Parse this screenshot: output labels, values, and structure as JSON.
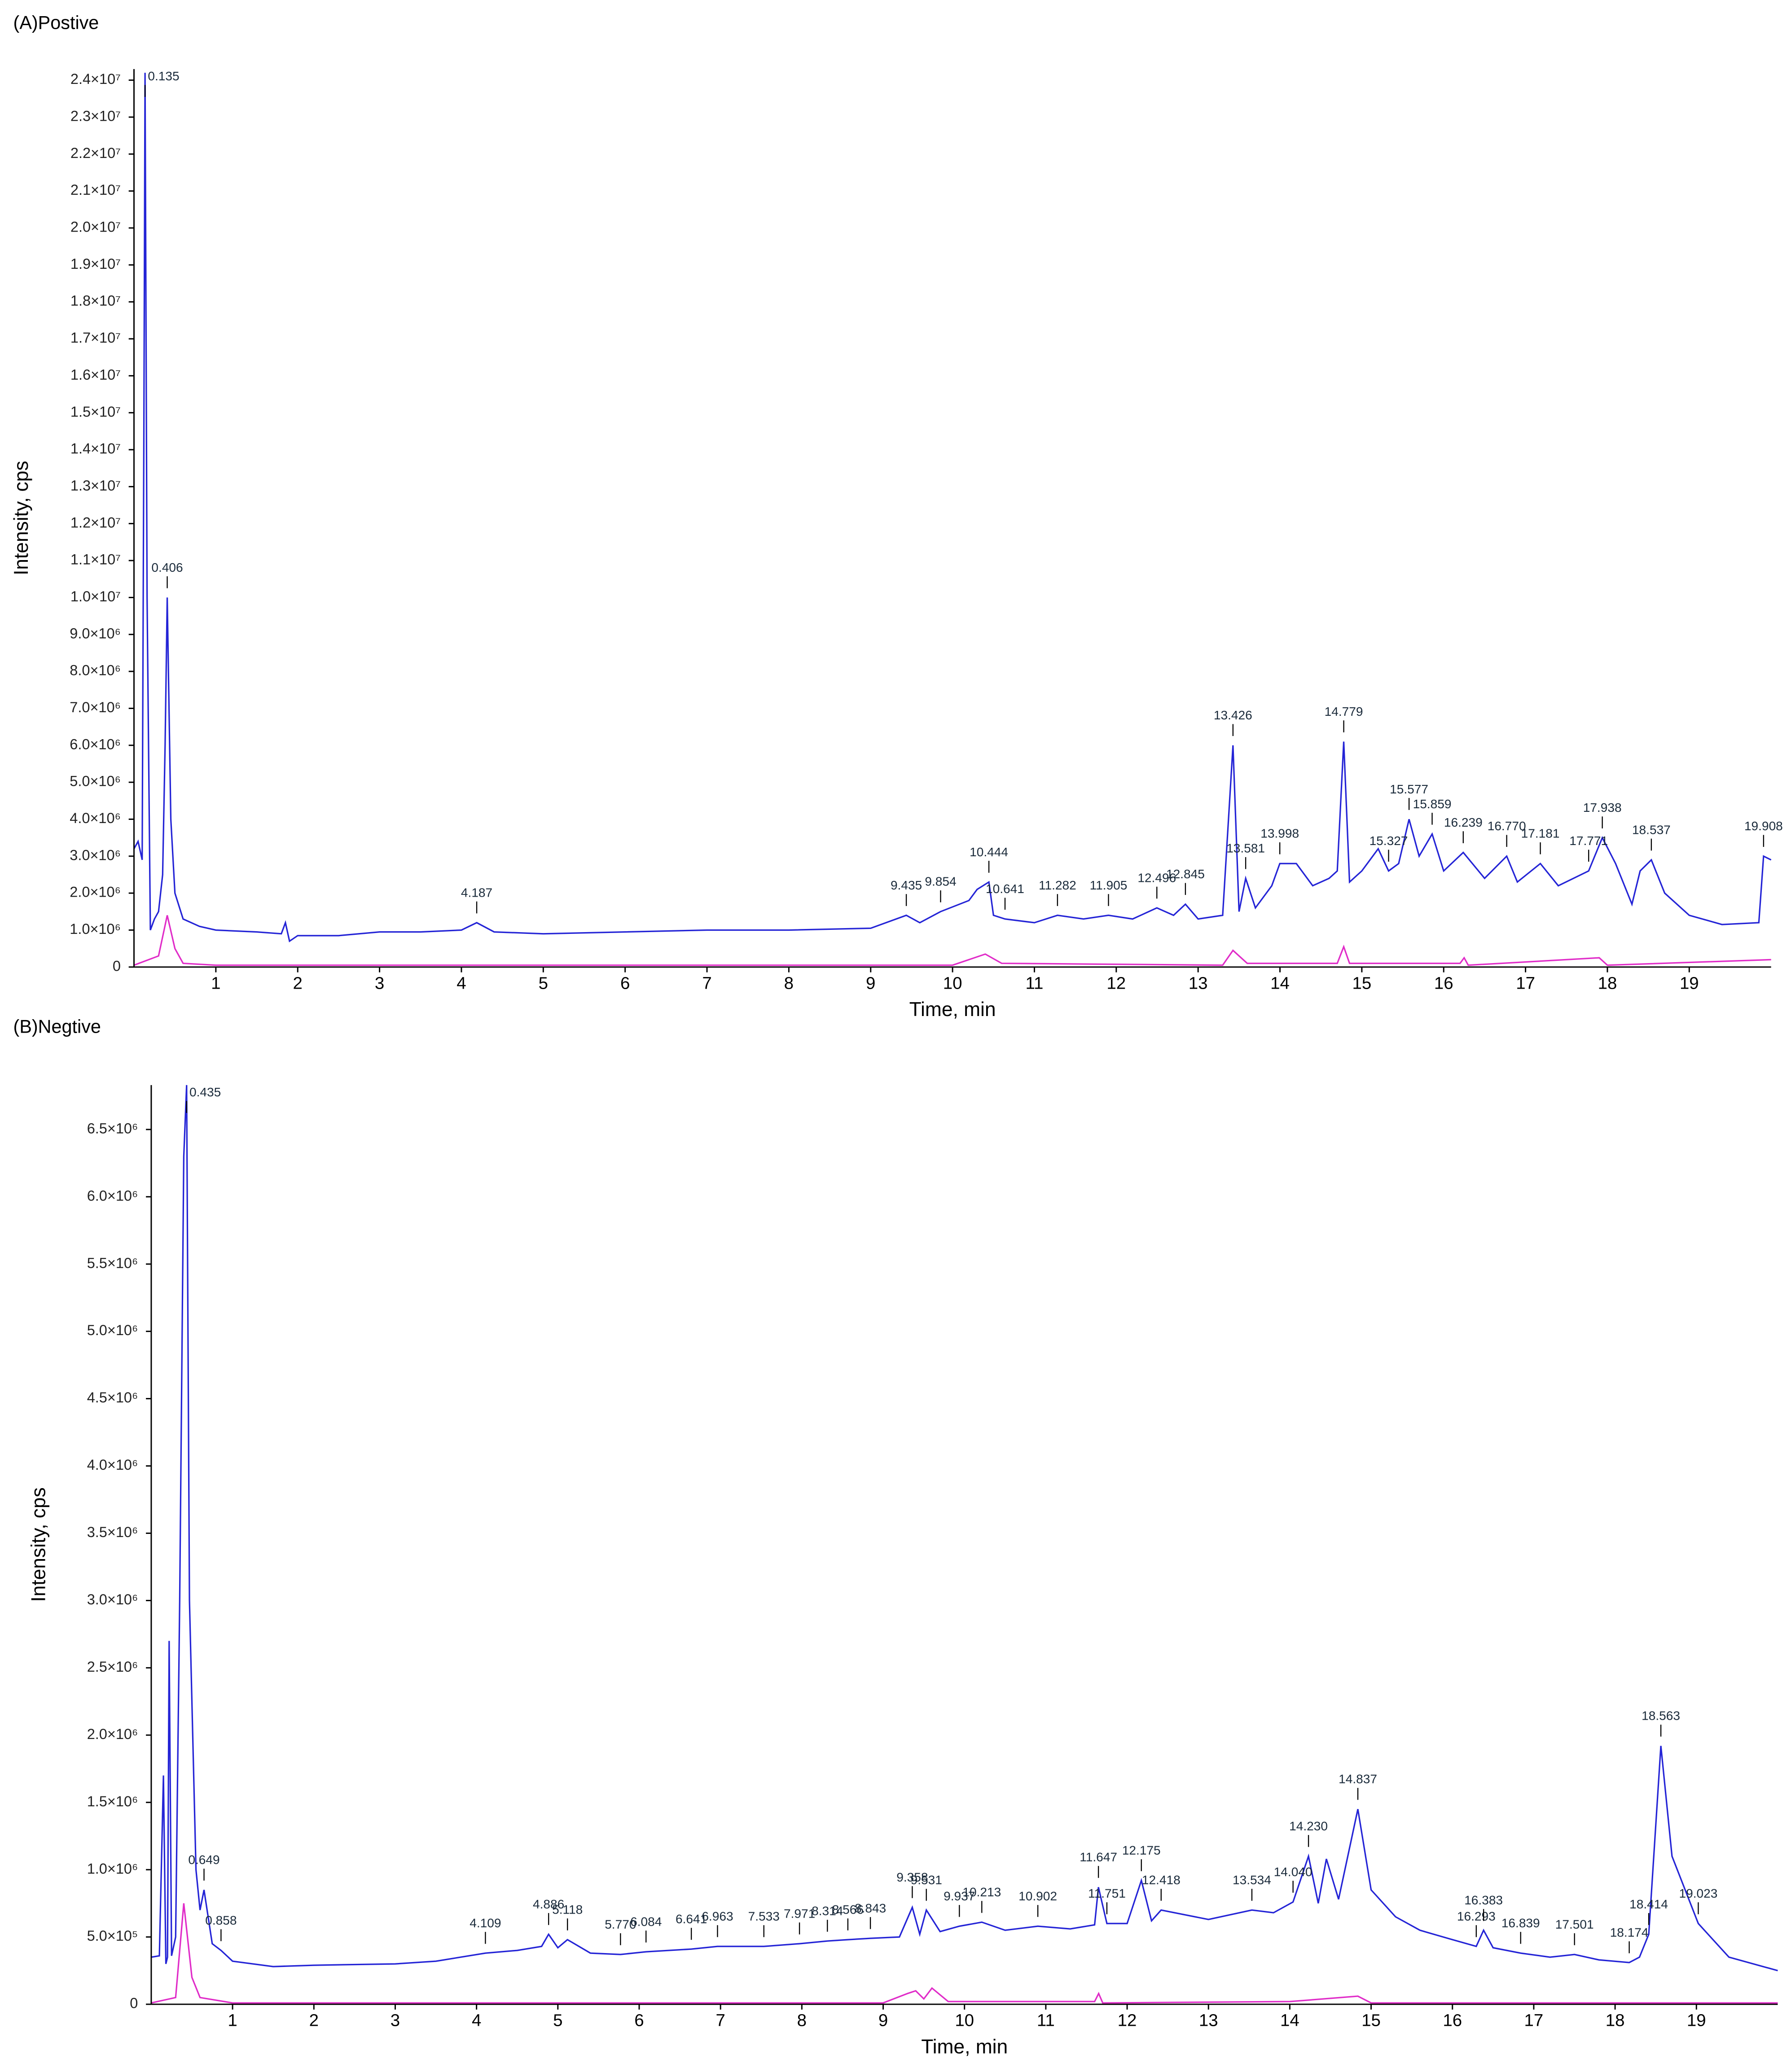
{
  "chart_data": [
    {
      "type": "line",
      "title": "(A)Postive",
      "x_label": "Time, min",
      "y_label": "Intensity, cps",
      "xlim": [
        0,
        20
      ],
      "xticks": [
        1,
        2,
        3,
        4,
        5,
        6,
        7,
        8,
        9,
        10,
        11,
        12,
        13,
        14,
        15,
        16,
        17,
        18,
        19
      ],
      "ylim": [
        0,
        24300000
      ],
      "yticks": [
        0,
        {
          "value": 1000000,
          "label": "1.0×10⁶"
        },
        {
          "value": 2000000,
          "label": "2.0×10⁶"
        },
        {
          "value": 3000000,
          "label": "3.0×10⁶"
        },
        {
          "value": 4000000,
          "label": "4.0×10⁶"
        },
        {
          "value": 5000000,
          "label": "5.0×10⁶"
        },
        {
          "value": 6000000,
          "label": "6.0×10⁶"
        },
        {
          "value": 7000000,
          "label": "7.0×10⁶"
        },
        {
          "value": 8000000,
          "label": "8.0×10⁶"
        },
        {
          "value": 9000000,
          "label": "9.0×10⁶"
        },
        {
          "value": 10000000,
          "label": "1.0×10⁷"
        },
        {
          "value": 11000000,
          "label": "1.1×10⁷"
        },
        {
          "value": 12000000,
          "label": "1.2×10⁷"
        },
        {
          "value": 13000000,
          "label": "1.3×10⁷"
        },
        {
          "value": 14000000,
          "label": "1.4×10⁷"
        },
        {
          "value": 15000000,
          "label": "1.5×10⁷"
        },
        {
          "value": 16000000,
          "label": "1.6×10⁷"
        },
        {
          "value": 17000000,
          "label": "1.7×10⁷"
        },
        {
          "value": 18000000,
          "label": "1.8×10⁷"
        },
        {
          "value": 19000000,
          "label": "1.9×10⁷"
        },
        {
          "value": 20000000,
          "label": "2.0×10⁷"
        },
        {
          "value": 21000000,
          "label": "2.1×10⁷"
        },
        {
          "value": 22000000,
          "label": "2.2×10⁷"
        },
        {
          "value": 23000000,
          "label": "2.3×10⁷"
        },
        {
          "value": 24000000,
          "label": "2.4×10⁷"
        }
      ],
      "grid": false,
      "series": [
        {
          "color": "#2424d6",
          "x": [
            0,
            0.05,
            0.1,
            0.12,
            0.135,
            0.16,
            0.2,
            0.25,
            0.3,
            0.35,
            0.38,
            0.406,
            0.45,
            0.5,
            0.6,
            0.8,
            1,
            1.5,
            1.8,
            1.85,
            1.9,
            2,
            2.5,
            3,
            3.5,
            4,
            4.187,
            4.4,
            5,
            6,
            7,
            8,
            9,
            9.435,
            9.6,
            9.854,
            10.2,
            10.3,
            10.444,
            10.5,
            10.641,
            11,
            11.282,
            11.6,
            11.905,
            12.2,
            12.496,
            12.7,
            12.845,
            13,
            13.3,
            13.426,
            13.5,
            13.581,
            13.7,
            13.9,
            13.998,
            14.2,
            14.4,
            14.6,
            14.7,
            14.779,
            14.85,
            15,
            15.2,
            15.327,
            15.45,
            15.577,
            15.7,
            15.859,
            16,
            16.239,
            16.5,
            16.77,
            16.9,
            17.181,
            17.4,
            17.771,
            17.938,
            18.1,
            18.3,
            18.4,
            18.537,
            18.7,
            19,
            19.4,
            19.85,
            19.908,
            20
          ],
          "values": [
            3200000,
            3400000,
            2900000,
            14000000,
            24200000,
            10000000,
            1000000,
            1300000,
            1500000,
            2500000,
            6000000,
            10000000,
            4000000,
            2000000,
            1300000,
            1100000,
            1000000,
            950000,
            900000,
            1200000,
            700000,
            850000,
            850000,
            950000,
            950000,
            1000000,
            1200000,
            950000,
            900000,
            950000,
            1000000,
            1000000,
            1050000,
            1400000,
            1200000,
            1500000,
            1800000,
            2100000,
            2300000,
            1400000,
            1300000,
            1200000,
            1400000,
            1300000,
            1400000,
            1300000,
            1600000,
            1400000,
            1700000,
            1300000,
            1400000,
            6000000,
            1500000,
            2400000,
            1600000,
            2200000,
            2800000,
            2800000,
            2200000,
            2400000,
            2600000,
            6100000,
            2300000,
            2600000,
            3200000,
            2600000,
            2800000,
            4000000,
            3000000,
            3600000,
            2600000,
            3100000,
            2400000,
            3000000,
            2300000,
            2800000,
            2200000,
            2600000,
            3500000,
            2800000,
            1700000,
            2600000,
            2900000,
            2000000,
            1400000,
            1150000,
            1200000,
            3000000,
            2900000
          ]
        },
        {
          "color": "#e02cc8",
          "x": [
            0,
            0.3,
            0.406,
            0.5,
            0.6,
            1,
            10,
            10.4,
            10.6,
            13.3,
            13.426,
            13.6,
            14.7,
            14.779,
            14.85,
            16.2,
            16.25,
            16.3,
            17.9,
            18,
            20
          ],
          "values": [
            50000,
            300000,
            1400000,
            500000,
            100000,
            50000,
            50000,
            350000,
            100000,
            50000,
            450000,
            100000,
            100000,
            550000,
            100000,
            100000,
            250000,
            50000,
            250000,
            50000,
            200000
          ]
        }
      ],
      "peak_labels": [
        0.135,
        0.406,
        4.187,
        9.435,
        9.854,
        10.444,
        10.641,
        11.282,
        11.905,
        12.496,
        12.845,
        13.426,
        13.581,
        13.998,
        14.779,
        15.327,
        15.577,
        15.859,
        16.239,
        {
          "value": 16.77,
          "label": "16.770"
        },
        17.181,
        17.771,
        17.938,
        18.537,
        19.908
      ]
    },
    {
      "type": "line",
      "title": "(B)Negtive",
      "x_label": "Time, min",
      "y_label": "Intensity, cps",
      "xlim": [
        0,
        20
      ],
      "xticks": [
        1,
        2,
        3,
        4,
        5,
        6,
        7,
        8,
        9,
        10,
        11,
        12,
        13,
        14,
        15,
        16,
        17,
        18,
        19
      ],
      "ylim": [
        0,
        6830000
      ],
      "yticks": [
        0,
        {
          "value": 500000,
          "label": "5.0×10⁵"
        },
        {
          "value": 1000000,
          "label": "1.0×10⁶"
        },
        {
          "value": 1500000,
          "label": "1.5×10⁶"
        },
        {
          "value": 2000000,
          "label": "2.0×10⁶"
        },
        {
          "value": 2500000,
          "label": "2.5×10⁶"
        },
        {
          "value": 3000000,
          "label": "3.0×10⁶"
        },
        {
          "value": 3500000,
          "label": "3.5×10⁶"
        },
        {
          "value": 4000000,
          "label": "4.0×10⁶"
        },
        {
          "value": 4500000,
          "label": "4.5×10⁶"
        },
        {
          "value": 5000000,
          "label": "5.0×10⁶"
        },
        {
          "value": 5500000,
          "label": "5.5×10⁶"
        },
        {
          "value": 6000000,
          "label": "6.0×10⁶"
        },
        {
          "value": 6500000,
          "label": "6.5×10⁶"
        }
      ],
      "grid": false,
      "series": [
        {
          "color": "#2424d6",
          "x": [
            0,
            0.1,
            0.15,
            0.18,
            0.2,
            0.22,
            0.25,
            0.3,
            0.35,
            0.4,
            0.435,
            0.47,
            0.55,
            0.6,
            0.649,
            0.75,
            0.858,
            1,
            1.5,
            2,
            3,
            3.5,
            4.109,
            4.5,
            4.8,
            4.886,
            5,
            5.118,
            5.4,
            5.77,
            6.084,
            6.641,
            6.963,
            7.533,
            7.971,
            8.314,
            8.566,
            8.843,
            9.2,
            9.358,
            9.45,
            9.531,
            9.7,
            9.937,
            10.213,
            10.5,
            10.902,
            11.3,
            11.6,
            11.647,
            11.751,
            12,
            12.175,
            12.3,
            12.418,
            13,
            13.534,
            13.8,
            14.04,
            14.23,
            14.35,
            14.45,
            14.6,
            14.837,
            15,
            15.3,
            15.6,
            16,
            16.293,
            16.383,
            16.5,
            16.839,
            17.2,
            17.501,
            17.8,
            18.174,
            18.3,
            18.414,
            18.563,
            18.7,
            19.023,
            19.4,
            20
          ],
          "values": [
            350000,
            360000,
            1700000,
            300000,
            350000,
            2700000,
            360000,
            500000,
            3000000,
            6300000,
            6830000,
            3000000,
            1000000,
            700000,
            850000,
            450000,
            400000,
            320000,
            280000,
            290000,
            300000,
            320000,
            380000,
            400000,
            430000,
            520000,
            420000,
            480000,
            380000,
            370000,
            390000,
            410000,
            430000,
            430000,
            450000,
            470000,
            480000,
            490000,
            500000,
            720000,
            520000,
            700000,
            540000,
            580000,
            610000,
            550000,
            580000,
            560000,
            590000,
            870000,
            600000,
            600000,
            920000,
            620000,
            700000,
            630000,
            700000,
            680000,
            760000,
            1100000,
            750000,
            1080000,
            780000,
            1450000,
            850000,
            650000,
            550000,
            480000,
            430000,
            550000,
            420000,
            380000,
            350000,
            370000,
            330000,
            310000,
            350000,
            520000,
            1920000,
            1100000,
            600000,
            350000,
            250000
          ]
        },
        {
          "color": "#e02cc8",
          "x": [
            0,
            0.3,
            0.4,
            0.5,
            0.6,
            1,
            9,
            9.3,
            9.4,
            9.5,
            9.6,
            9.8,
            11.6,
            11.65,
            11.7,
            14,
            14.837,
            15,
            20
          ],
          "values": [
            10000,
            50000,
            750000,
            200000,
            50000,
            10000,
            10000,
            80000,
            100000,
            40000,
            120000,
            20000,
            20000,
            80000,
            10000,
            20000,
            60000,
            10000,
            10000
          ]
        }
      ],
      "peak_labels": [
        0.435,
        0.649,
        0.858,
        4.109,
        4.886,
        5.118,
        {
          "value": 5.77,
          "label": "5.770"
        },
        6.084,
        6.641,
        6.963,
        7.533,
        7.971,
        8.314,
        8.566,
        8.843,
        9.358,
        9.531,
        9.937,
        10.213,
        10.902,
        11.647,
        11.751,
        12.175,
        12.418,
        13.534,
        {
          "value": 14.04,
          "label": "14.040"
        },
        {
          "value": 14.23,
          "label": "14.230"
        },
        14.837,
        16.293,
        16.383,
        16.839,
        17.501,
        18.174,
        18.414,
        18.563,
        19.023
      ]
    }
  ]
}
